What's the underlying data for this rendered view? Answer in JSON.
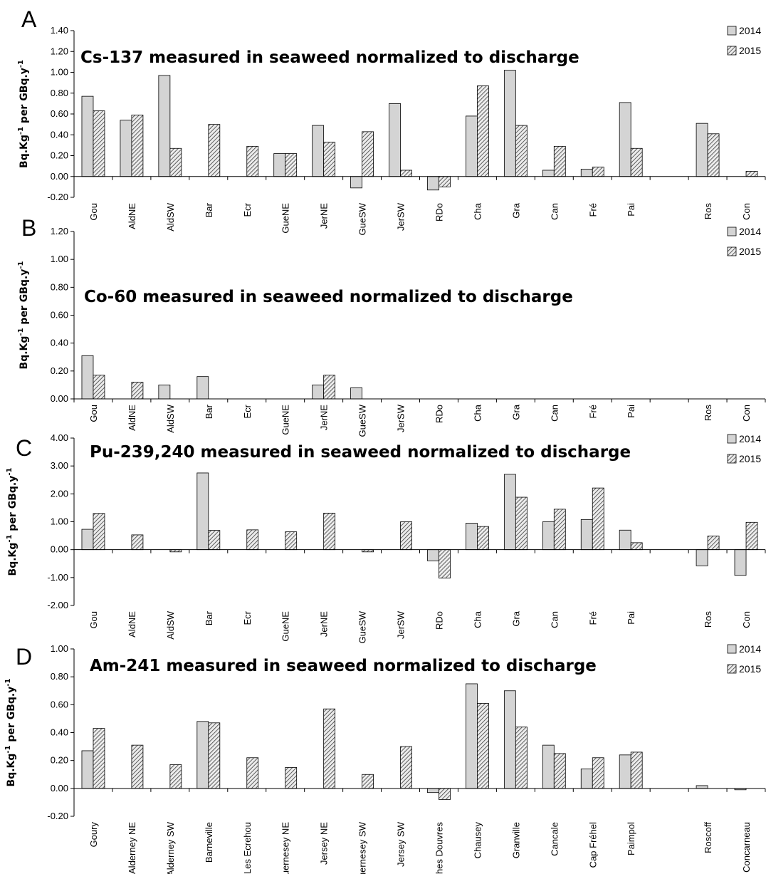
{
  "chart_data": [
    {
      "type": "bar",
      "panel": "A",
      "title": "Cs-137 measured in seaweed normalized to discharge",
      "ylabel": "Bq.Kg-1 per GBq.y-1",
      "ylim": [
        -0.2,
        1.4
      ],
      "yticks": [
        -0.2,
        0.0,
        0.2,
        0.4,
        0.6,
        0.8,
        1.0,
        1.2,
        1.4
      ],
      "categories": [
        "Gou",
        "AldNE",
        "AldSW",
        "Bar",
        "Ecr",
        "GueNE",
        "JerNE",
        "GueSW",
        "JerSW",
        "RDo",
        "Cha",
        "Gra",
        "Can",
        "Fré",
        "Pai",
        "",
        "Ros",
        "Con"
      ],
      "series": [
        {
          "name": "2014",
          "values": [
            0.77,
            0.54,
            0.97,
            null,
            null,
            0.22,
            0.49,
            -0.11,
            0.7,
            -0.13,
            0.58,
            1.02,
            0.06,
            0.07,
            0.71,
            null,
            0.51,
            null
          ]
        },
        {
          "name": "2015",
          "values": [
            0.63,
            0.59,
            0.27,
            0.5,
            0.29,
            0.22,
            0.33,
            0.43,
            0.06,
            -0.1,
            0.87,
            0.49,
            0.29,
            0.09,
            0.27,
            null,
            0.41,
            0.05
          ]
        }
      ]
    },
    {
      "type": "bar",
      "panel": "B",
      "title": "Co-60 measured in seaweed normalized to discharge",
      "ylabel": "Bq.Kg-1 per GBq.y-1",
      "ylim": [
        0.0,
        1.2
      ],
      "yticks": [
        0.0,
        0.2,
        0.4,
        0.6,
        0.8,
        1.0,
        1.2
      ],
      "categories": [
        "Gou",
        "AldNE",
        "AldSW",
        "Bar",
        "Ecr",
        "GueNE",
        "JerNE",
        "GueSW",
        "JerSW",
        "RDo",
        "Cha",
        "Gra",
        "Can",
        "Fré",
        "Pai",
        "",
        "Ros",
        "Con"
      ],
      "series": [
        {
          "name": "2014",
          "values": [
            0.31,
            null,
            0.1,
            0.16,
            null,
            null,
            0.1,
            0.08,
            null,
            null,
            null,
            null,
            null,
            null,
            null,
            null,
            null,
            null
          ]
        },
        {
          "name": "2015",
          "values": [
            0.17,
            0.12,
            null,
            null,
            null,
            null,
            0.17,
            null,
            null,
            null,
            null,
            null,
            null,
            null,
            null,
            null,
            null,
            null
          ]
        }
      ]
    },
    {
      "type": "bar",
      "panel": "C",
      "title": "Pu-239,240 measured in seaweed normalized to discharge",
      "ylabel": "Bq.Kg-1 per GBq.y-1",
      "ylim": [
        -2.0,
        4.0
      ],
      "yticks": [
        -2.0,
        -1.0,
        0.0,
        1.0,
        2.0,
        3.0,
        4.0
      ],
      "categories": [
        "Gou",
        "AldNE",
        "AldSW",
        "Bar",
        "Ecr",
        "GueNE",
        "JerNE",
        "GueSW",
        "JerSW",
        "RDo",
        "Cha",
        "Gra",
        "Can",
        "Fré",
        "Pai",
        "",
        "Ros",
        "Con"
      ],
      "series": [
        {
          "name": "2014",
          "values": [
            0.73,
            null,
            null,
            2.75,
            null,
            null,
            null,
            null,
            null,
            -0.4,
            0.95,
            2.7,
            1.0,
            1.08,
            0.7,
            null,
            -0.58,
            -0.92
          ]
        },
        {
          "name": "2015",
          "values": [
            1.3,
            0.53,
            -0.08,
            0.69,
            0.71,
            0.64,
            1.31,
            -0.08,
            1.0,
            -1.02,
            0.83,
            1.88,
            1.45,
            2.21,
            0.25,
            null,
            0.49,
            0.98
          ]
        }
      ]
    },
    {
      "type": "bar",
      "panel": "D",
      "title": "Am-241 measured in seaweed normalized to discharge",
      "ylabel": "Bq.Kg-1 per GBq.y-1",
      "ylim": [
        -0.2,
        1.0
      ],
      "yticks": [
        -0.2,
        0.0,
        0.2,
        0.4,
        0.6,
        0.8,
        1.0
      ],
      "categories": [
        "Goury",
        "Alderney NE",
        "Alderney SW",
        "Barneville",
        "Les Ecrehou",
        "Guernesey NE",
        "Jersey NE",
        "Guernesey SW",
        "Jersey SW",
        "Roches Douvres",
        "Chausey",
        "Granville",
        "Cancale",
        "Cap Fréhel",
        "Paimpol",
        "",
        "Roscoff",
        "Concarneau"
      ],
      "series": [
        {
          "name": "2014",
          "values": [
            0.27,
            null,
            null,
            0.48,
            null,
            null,
            null,
            null,
            null,
            -0.03,
            0.75,
            0.7,
            0.31,
            0.14,
            0.24,
            null,
            0.02,
            -0.01
          ]
        },
        {
          "name": "2015",
          "values": [
            0.43,
            0.31,
            0.17,
            0.47,
            0.22,
            0.15,
            0.57,
            0.1,
            0.3,
            -0.08,
            0.61,
            0.44,
            0.25,
            0.22,
            0.26,
            null,
            null,
            null
          ]
        }
      ]
    }
  ],
  "legend": {
    "labels": [
      "2014",
      "2015"
    ]
  },
  "colors": {
    "bar_2014": "#d4d4d4",
    "bar_2015_bg": "#ececec",
    "hatch": "#3a3a3a",
    "axis": "#000000"
  }
}
